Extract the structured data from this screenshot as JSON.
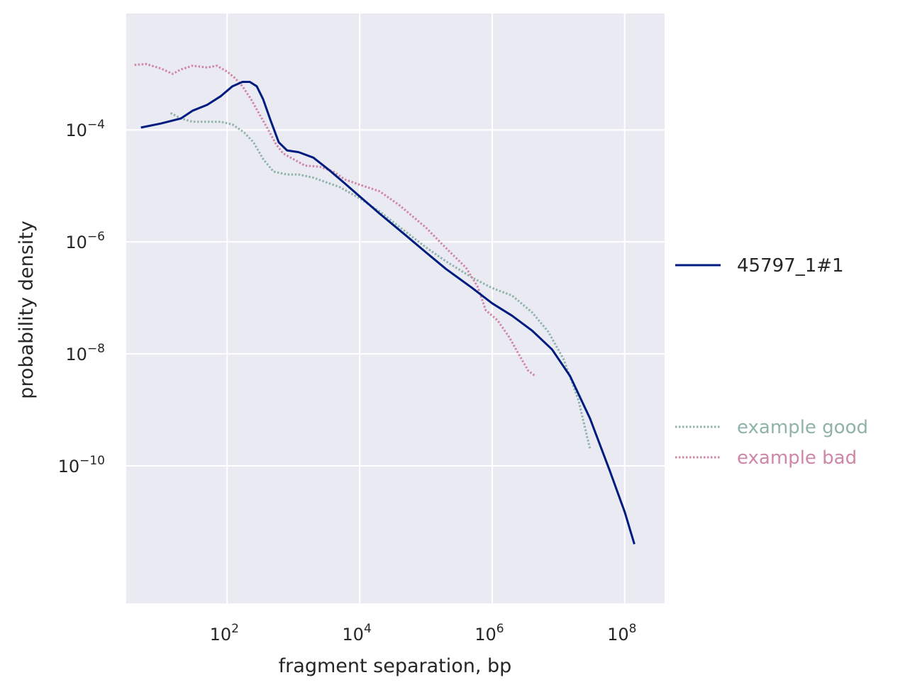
{
  "chart_data": {
    "type": "line",
    "xlabel": "fragment separation, bp",
    "ylabel": "probability density",
    "x_scale": "log",
    "y_scale": "log",
    "xlim": [
      3,
      400000000
    ],
    "ylim": [
      3.5e-13,
      0.012
    ],
    "grid": true,
    "x_ticks": [
      {
        "value": 100,
        "base": "10",
        "exp": "2"
      },
      {
        "value": 10000,
        "base": "10",
        "exp": "4"
      },
      {
        "value": 1000000,
        "base": "10",
        "exp": "6"
      },
      {
        "value": 100000000,
        "base": "10",
        "exp": "8"
      }
    ],
    "y_ticks": [
      {
        "value": 0.0001,
        "base": "10",
        "exp": "−4"
      },
      {
        "value": 1e-06,
        "base": "10",
        "exp": "−6"
      },
      {
        "value": 1e-08,
        "base": "10",
        "exp": "−8"
      },
      {
        "value": 1e-10,
        "base": "10",
        "exp": "−10"
      }
    ],
    "legend_placement": "right",
    "series": [
      {
        "name": "45797_1#1",
        "color": "#001c7f",
        "style": "solid",
        "points": [
          [
            5,
            0.00011
          ],
          [
            10,
            0.00013
          ],
          [
            20,
            0.00016
          ],
          [
            30,
            0.00022
          ],
          [
            50,
            0.00028
          ],
          [
            80,
            0.0004
          ],
          [
            120,
            0.0006
          ],
          [
            170,
            0.00072
          ],
          [
            220,
            0.00072
          ],
          [
            280,
            0.0006
          ],
          [
            350,
            0.00035
          ],
          [
            450,
            0.00015
          ],
          [
            600,
            6e-05
          ],
          [
            800,
            4.3e-05
          ],
          [
            1200,
            4e-05
          ],
          [
            2000,
            3.2e-05
          ],
          [
            3500,
            1.9e-05
          ],
          [
            6000,
            1.1e-05
          ],
          [
            10000,
            6.5e-06
          ],
          [
            20000,
            3.2e-06
          ],
          [
            50000,
            1.3e-06
          ],
          [
            100000,
            6.5e-07
          ],
          [
            200000,
            3.3e-07
          ],
          [
            500000,
            1.5e-07
          ],
          [
            1000000,
            8e-08
          ],
          [
            2000000,
            4.8e-08
          ],
          [
            4000000,
            2.6e-08
          ],
          [
            8000000,
            1.2e-08
          ],
          [
            15000000,
            4e-09
          ],
          [
            30000000,
            7e-10
          ],
          [
            60000000,
            8e-11
          ],
          [
            100000000,
            1.5e-11
          ],
          [
            140000000,
            4e-12
          ]
        ]
      },
      {
        "name": "example good",
        "color": "#8fb3ab",
        "style": "dotted",
        "points": [
          [
            14,
            0.0002
          ],
          [
            20,
            0.00016
          ],
          [
            30,
            0.00014
          ],
          [
            50,
            0.00014
          ],
          [
            80,
            0.00014
          ],
          [
            120,
            0.000125
          ],
          [
            180,
            9e-05
          ],
          [
            250,
            6e-05
          ],
          [
            350,
            3e-05
          ],
          [
            500,
            1.8e-05
          ],
          [
            800,
            1.6e-05
          ],
          [
            1200,
            1.6e-05
          ],
          [
            2000,
            1.4e-05
          ],
          [
            5000,
            9.5e-06
          ],
          [
            10000,
            6e-06
          ],
          [
            20000,
            3.5e-06
          ],
          [
            50000,
            1.5e-06
          ],
          [
            100000,
            8e-07
          ],
          [
            200000,
            4.5e-07
          ],
          [
            500000,
            2.3e-07
          ],
          [
            1000000,
            1.5e-07
          ],
          [
            2000000,
            1.1e-07
          ],
          [
            4000000,
            5.5e-08
          ],
          [
            7000000,
            2.5e-08
          ],
          [
            12000000,
            8e-09
          ],
          [
            20000000,
            1.5e-09
          ],
          [
            30000000,
            2e-10
          ]
        ]
      },
      {
        "name": "example bad",
        "color": "#d086a6",
        "style": "dotted",
        "points": [
          [
            4,
            0.00145
          ],
          [
            6,
            0.0015
          ],
          [
            10,
            0.00125
          ],
          [
            15,
            0.001
          ],
          [
            20,
            0.0012
          ],
          [
            30,
            0.0014
          ],
          [
            50,
            0.0013
          ],
          [
            70,
            0.0014
          ],
          [
            100,
            0.0011
          ],
          [
            130,
            0.00085
          ],
          [
            170,
            0.0006
          ],
          [
            230,
            0.00035
          ],
          [
            300,
            0.0002
          ],
          [
            400,
            0.00011
          ],
          [
            550,
            5.5e-05
          ],
          [
            700,
            3.8e-05
          ],
          [
            1000,
            3e-05
          ],
          [
            1500,
            2.3e-05
          ],
          [
            2500,
            2.2e-05
          ],
          [
            4000,
            1.8e-05
          ],
          [
            6000,
            1.3e-05
          ],
          [
            10000,
            1.05e-05
          ],
          [
            20000,
            8e-06
          ],
          [
            40000,
            4.5e-06
          ],
          [
            60000,
            3e-06
          ],
          [
            100000,
            1.8e-06
          ],
          [
            150000,
            1.1e-06
          ],
          [
            250000,
            6e-07
          ],
          [
            400000,
            3.5e-07
          ],
          [
            600000,
            1.6e-07
          ],
          [
            800000,
            6e-08
          ],
          [
            1200000,
            4e-08
          ],
          [
            1800000,
            2e-08
          ],
          [
            2500000,
            1e-08
          ],
          [
            3500000,
            5e-09
          ],
          [
            4500000,
            4e-09
          ]
        ]
      }
    ]
  }
}
